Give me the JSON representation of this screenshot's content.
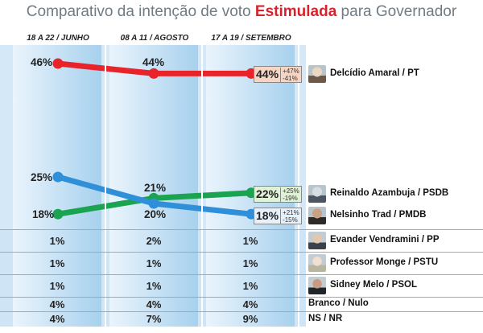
{
  "title": {
    "prefix": "Comparativo da intenção de voto ",
    "highlight": "Estimulada",
    "suffix": " para Governador"
  },
  "colors": {
    "delcidio": "#e8232a",
    "reinaldo": "#1aa350",
    "nelsinho": "#2f8fd8",
    "background_col": "#b7d9f2",
    "highlight": "#d6222d"
  },
  "chart_data": {
    "type": "line",
    "categories": [
      "18 A 22 / JUNHO",
      "08 A 11 / AGOSTO",
      "17 A 19 / SETEMBRO"
    ],
    "series": [
      {
        "name": "Delcídio Amaral / PT",
        "values": [
          46,
          44,
          44
        ],
        "labels": [
          "46%",
          "44%",
          "44%"
        ],
        "range_high": "+47%",
        "range_low": "-41%",
        "box_fill": "#f8d4c3"
      },
      {
        "name": "Reinaldo Azambuja / PSDB",
        "values": [
          18,
          21,
          22
        ],
        "labels": [
          "18%",
          "21%",
          "22%"
        ],
        "range_high": "+25%",
        "range_low": "-19%",
        "box_fill": "#dff1d6"
      },
      {
        "name": "Nelsinho Trad / PMDB",
        "values": [
          25,
          20,
          18
        ],
        "labels": [
          "25%",
          "20%",
          "18%"
        ],
        "range_high": "+21%",
        "range_low": "-15%",
        "box_fill": "#e6f1fb"
      }
    ]
  },
  "rows": [
    {
      "name": "Evander Vendramini / PP",
      "values": [
        "1%",
        "2%",
        "1%"
      ],
      "avatar": true
    },
    {
      "name": "Professor Monge / PSTU",
      "values": [
        "1%",
        "1%",
        "1%"
      ],
      "avatar": true
    },
    {
      "name": "Sidney Melo / PSOL",
      "values": [
        "1%",
        "1%",
        "1%"
      ],
      "avatar": true
    },
    {
      "name": "Branco / Nulo",
      "values": [
        "4%",
        "4%",
        "4%"
      ],
      "avatar": false
    },
    {
      "name": "NS / NR",
      "values": [
        "4%",
        "7%",
        "9%"
      ],
      "avatar": false
    }
  ]
}
